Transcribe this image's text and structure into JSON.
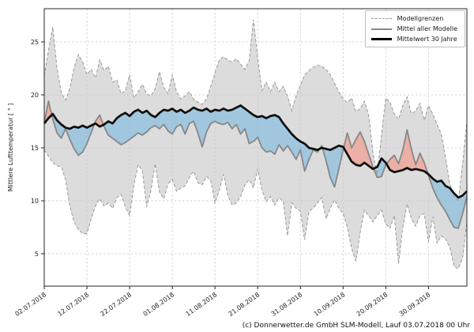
{
  "figure": {
    "ylabel": "Mittlere Lufttemperatur [ ° ]",
    "footer": "(c) Donnerwetter.de GmbH SLM-Modell, Lauf 03.07.2018 00 Uhr",
    "legend": {
      "items": [
        {
          "label": "Modellgrenzen",
          "style": "dashed-gray"
        },
        {
          "label": "Mittel aller Modelle",
          "style": "solid-gray"
        },
        {
          "label": "Mittelwert 30 Jahre",
          "style": "thick-black"
        }
      ]
    },
    "colors": {
      "envelope_fill": "#dcdcdc",
      "envelope_edge": "#999999",
      "cool_fill": "rgba(125,185,225,0.62)",
      "warm_fill": "rgba(242,150,136,0.65)",
      "mean_line": "#878787",
      "climate_line": "#0d0d0d",
      "grid": "#c9c9c9",
      "spine": "#262626",
      "text": "#1a1a1a"
    }
  },
  "chart_data": {
    "type": "line",
    "title": "",
    "xlabel": "",
    "ylabel": "Mittlere Lufttemperatur [ ° ]",
    "grid": true,
    "legend_position": "upper right",
    "x_unit": "days since 02.07.2018",
    "xlim_days": [
      0,
      99
    ],
    "ylim": [
      1.9,
      28.1
    ],
    "y_ticks": [
      5,
      10,
      15,
      20,
      25
    ],
    "x_tick_days": [
      0,
      10,
      20,
      30,
      40,
      50,
      60,
      70,
      80,
      90
    ],
    "x_tick_labels": [
      "02.07.2018",
      "12.07.2018",
      "22.07.2018",
      "01.08.2018",
      "11.08.2018",
      "21.08.2018",
      "31.08.2018",
      "10.09.2018",
      "20.09.2018",
      "30.09.2018"
    ],
    "series": [
      {
        "name": "Modellgrenzen (obere Grenze)",
        "role": "upper",
        "style": "dashed",
        "values": [
          21.8,
          24.2,
          26.4,
          22.5,
          20.2,
          19.5,
          20.6,
          22.6,
          23.8,
          23.1,
          21.9,
          22.4,
          21.6,
          23.3,
          22.3,
          22.7,
          21.2,
          21.4,
          20.1,
          20.4,
          21.9,
          19.7,
          20.3,
          21.0,
          20.1,
          19.9,
          20.6,
          22.2,
          20.7,
          20.1,
          21.9,
          20.3,
          19.6,
          19.9,
          20.3,
          19.6,
          19.3,
          19.1,
          19.6,
          20.8,
          22.1,
          23.3,
          23.6,
          23.3,
          23.1,
          23.4,
          22.9,
          22.4,
          23.2,
          27.1,
          23.5,
          20.4,
          21.2,
          20.3,
          21.2,
          20.3,
          20.8,
          19.9,
          18.5,
          19.9,
          20.9,
          21.9,
          22.3,
          22.6,
          22.8,
          22.7,
          22.4,
          21.9,
          21.1,
          20.3,
          19.6,
          19.3,
          19.7,
          18.4,
          18.7,
          19.4,
          18.1,
          14.5,
          12.5,
          16.2,
          19.7,
          19.3,
          18.2,
          17.7,
          19.0,
          19.8,
          18.2,
          18.5,
          19.2,
          17.6,
          19.0,
          18.2,
          17.2,
          16.3,
          14.1,
          11.6,
          10.4,
          10.0,
          13.5,
          17.5
        ]
      },
      {
        "name": "Modellgrenzen (untere Grenze)",
        "role": "lower",
        "style": "dashed",
        "values": [
          14.8,
          14.2,
          13.6,
          13.3,
          13.2,
          12.0,
          9.5,
          8.0,
          7.3,
          6.9,
          6.9,
          8.3,
          9.5,
          10.2,
          9.5,
          9.8,
          9.3,
          10.3,
          10.6,
          9.4,
          8.6,
          11.5,
          13.4,
          12.8,
          9.4,
          11.0,
          13.5,
          10.8,
          10.2,
          11.6,
          12.0,
          10.9,
          11.2,
          11.4,
          12.2,
          12.8,
          11.7,
          11.5,
          12.3,
          11.9,
          9.8,
          11.0,
          12.5,
          10.5,
          9.6,
          9.8,
          10.4,
          11.5,
          12.0,
          11.2,
          13.0,
          11.0,
          9.9,
          10.4,
          9.6,
          10.3,
          9.9,
          6.7,
          9.8,
          9.3,
          9.0,
          6.3,
          9.0,
          9.3,
          9.8,
          10.3,
          8.3,
          9.3,
          10.1,
          9.3,
          8.8,
          7.5,
          5.5,
          4.3,
          7.0,
          9.1,
          8.6,
          8.0,
          8.6,
          9.1,
          7.8,
          7.4,
          8.6,
          4.1,
          7.5,
          9.7,
          8.3,
          7.6,
          8.6,
          8.8,
          6.1,
          8.5,
          6.0,
          6.7,
          6.4,
          5.6,
          3.8,
          3.6,
          4.6,
          8.0
        ]
      },
      {
        "name": "Mittel aller Modelle",
        "role": "mean",
        "style": "solid-gray",
        "values": [
          17.4,
          19.4,
          17.7,
          16.4,
          15.9,
          16.8,
          15.8,
          14.9,
          14.3,
          14.6,
          15.4,
          16.4,
          17.5,
          18.1,
          17.0,
          16.2,
          15.9,
          15.6,
          15.3,
          15.5,
          15.8,
          16.1,
          16.4,
          16.2,
          16.5,
          16.9,
          17.1,
          16.8,
          17.2,
          16.6,
          16.3,
          17.0,
          17.2,
          16.3,
          17.3,
          17.5,
          16.4,
          15.1,
          16.5,
          17.3,
          17.5,
          17.3,
          17.2,
          17.4,
          16.8,
          17.2,
          16.3,
          16.8,
          15.4,
          15.6,
          16.0,
          15.0,
          14.6,
          14.7,
          14.4,
          15.3,
          14.7,
          15.2,
          14.6,
          13.9,
          14.8,
          12.8,
          13.9,
          14.8,
          14.6,
          15.2,
          13.8,
          12.2,
          11.3,
          13.0,
          14.8,
          16.4,
          15.0,
          15.8,
          16.5,
          15.6,
          14.4,
          13.2,
          12.2,
          12.3,
          13.4,
          13.9,
          14.3,
          13.5,
          14.8,
          16.7,
          14.9,
          13.4,
          14.5,
          13.6,
          12.4,
          11.2,
          10.3,
          9.6,
          9.0,
          8.2,
          7.5,
          7.4,
          8.8,
          10.4
        ]
      },
      {
        "name": "Mittelwert 30 Jahre",
        "role": "climate",
        "style": "thick-black",
        "values": [
          17.3,
          17.8,
          18.2,
          17.6,
          17.2,
          16.9,
          16.8,
          17.0,
          16.9,
          17.1,
          16.9,
          17.1,
          17.3,
          17.0,
          17.2,
          17.5,
          17.3,
          17.8,
          18.1,
          18.3,
          18.0,
          18.4,
          18.6,
          18.3,
          18.5,
          18.1,
          17.9,
          18.3,
          18.6,
          18.5,
          18.7,
          18.4,
          18.6,
          18.3,
          18.5,
          18.8,
          18.6,
          18.5,
          18.7,
          18.4,
          18.6,
          18.5,
          18.7,
          18.5,
          18.6,
          18.8,
          19.0,
          18.7,
          18.4,
          18.1,
          17.9,
          18.0,
          17.8,
          18.0,
          18.1,
          17.9,
          17.3,
          16.8,
          16.3,
          15.9,
          15.6,
          15.4,
          15.0,
          14.9,
          14.8,
          15.0,
          14.9,
          14.8,
          15.0,
          15.2,
          15.1,
          14.4,
          13.7,
          13.4,
          13.3,
          13.6,
          13.3,
          13.0,
          13.2,
          14.0,
          13.6,
          12.9,
          12.7,
          12.8,
          12.9,
          13.1,
          12.9,
          13.0,
          12.9,
          12.8,
          12.5,
          12.1,
          11.8,
          11.9,
          11.4,
          11.2,
          10.7,
          10.3,
          10.5,
          10.9
        ]
      }
    ]
  }
}
